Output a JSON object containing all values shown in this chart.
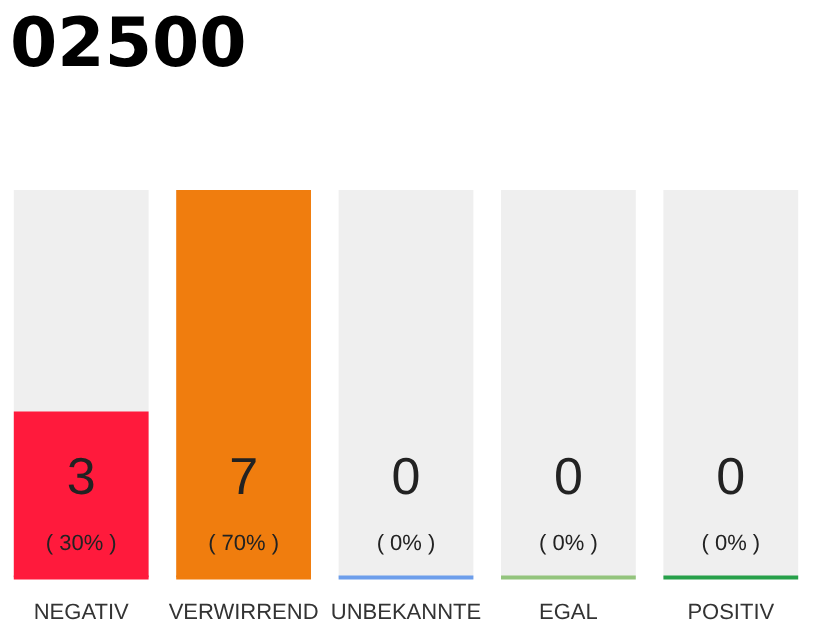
{
  "chart_data": {
    "type": "bar",
    "title": "02500",
    "categories": [
      "NEGATIV",
      "VERWIRREND",
      "UNBEKANNTE",
      "EGAL",
      "POSITIV"
    ],
    "values": [
      3,
      7,
      0,
      0,
      0
    ],
    "colors": [
      "#ff1a3c",
      "#f07d0e",
      "#6d9eeb",
      "#93c47d",
      "#27a04a"
    ],
    "value_labels": [
      "3",
      "7",
      "0",
      "0",
      "0"
    ],
    "annotations": [
      "( 30% )",
      "( 70% )",
      "( 0% )",
      "( 0% )",
      "( 0% )"
    ],
    "grid": false,
    "legend": false,
    "tick_labels": "x"
  }
}
